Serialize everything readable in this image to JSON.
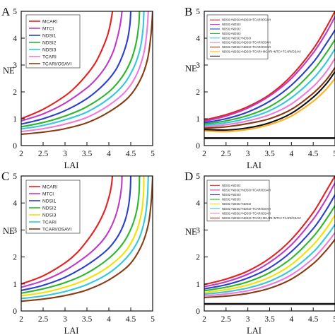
{
  "figure": {
    "panels": [
      {
        "letter": "A"
      },
      {
        "letter": "B"
      },
      {
        "letter": "C"
      },
      {
        "letter": "D"
      }
    ]
  },
  "chart_data": [
    {
      "type": "line",
      "panel": "A",
      "xlabel": "LAI",
      "ylabel": "NE",
      "xlim": [
        2,
        5
      ],
      "ylim": [
        0,
        5
      ],
      "xticks": [
        "2",
        "2.5",
        "3",
        "3.5",
        "4",
        "4.5",
        "5"
      ],
      "yticks": [
        "0",
        "1",
        "2",
        "3",
        "4",
        "5"
      ],
      "grid": false,
      "legend_position": "top-left",
      "series": [
        {
          "name": "MCARI",
          "color": "#e62020",
          "x": [
            2.0,
            2.5,
            3.0,
            3.25,
            3.5,
            3.7,
            3.85,
            3.97,
            4.03,
            4.07,
            4.08
          ],
          "y": [
            1.0,
            1.35,
            1.85,
            2.2,
            2.65,
            3.1,
            3.6,
            4.1,
            4.5,
            4.85,
            5.0
          ]
        },
        {
          "name": "MTCI",
          "color": "#c03ac8",
          "x": [
            2.0,
            2.5,
            3.0,
            3.5,
            3.75,
            3.95,
            4.1,
            4.2,
            4.27,
            4.3
          ],
          "y": [
            0.92,
            1.18,
            1.58,
            2.15,
            2.55,
            3.0,
            3.5,
            4.05,
            4.6,
            5.0
          ]
        },
        {
          "name": "NDSI1",
          "color": "#2a3fd0",
          "x": [
            2.0,
            2.5,
            3.0,
            3.5,
            3.9,
            4.15,
            4.3,
            4.42,
            4.48,
            4.5
          ],
          "y": [
            0.8,
            1.0,
            1.3,
            1.75,
            2.3,
            2.8,
            3.3,
            3.9,
            4.5,
            5.0
          ]
        },
        {
          "name": "NDSI2",
          "color": "#2ab82a",
          "x": [
            2.0,
            2.5,
            3.0,
            3.5,
            4.0,
            4.3,
            4.5,
            4.62,
            4.68,
            4.7
          ],
          "y": [
            0.7,
            0.86,
            1.1,
            1.45,
            2.0,
            2.55,
            3.15,
            3.8,
            4.45,
            5.0
          ]
        },
        {
          "name": "NDSI3",
          "color": "#33c8dc",
          "x": [
            2.0,
            2.5,
            3.0,
            3.5,
            4.0,
            4.35,
            4.58,
            4.72,
            4.78,
            4.8
          ],
          "y": [
            0.62,
            0.75,
            0.96,
            1.25,
            1.75,
            2.3,
            2.95,
            3.65,
            4.35,
            5.0
          ]
        },
        {
          "name": "TCARI",
          "color": "#f07ad8",
          "x": [
            2.0,
            2.5,
            3.0,
            3.5,
            4.0,
            4.4,
            4.65,
            4.8,
            4.87,
            4.9
          ],
          "y": [
            0.52,
            0.63,
            0.8,
            1.05,
            1.5,
            2.05,
            2.7,
            3.45,
            4.25,
            5.0
          ]
        },
        {
          "name": "TCARI/OSAVI",
          "color": "#8a3a10",
          "x": [
            2.0,
            2.5,
            3.0,
            3.5,
            4.0,
            4.45,
            4.72,
            4.88,
            4.96,
            5.0
          ],
          "y": [
            0.42,
            0.5,
            0.63,
            0.85,
            1.25,
            1.8,
            2.45,
            3.2,
            4.1,
            5.0
          ]
        }
      ]
    },
    {
      "type": "line",
      "panel": "B",
      "xlabel": "LAI",
      "ylabel": "NE",
      "xlim": [
        2,
        5
      ],
      "ylim": [
        0,
        5
      ],
      "xticks": [
        "2",
        "2.5",
        "3",
        "3.5",
        "4",
        "4.5",
        "5"
      ],
      "yticks": [
        "0",
        "1",
        "2",
        "3",
        "4",
        "5"
      ],
      "grid": false,
      "legend_position": "top-left",
      "series": [
        {
          "name": "NDSI1+NDSI2+NDSI3+TCARI/OSAVI",
          "color": "#e62020",
          "x": [
            2.0,
            2.5,
            3.0,
            3.5,
            4.0,
            4.5,
            4.8,
            5.0
          ],
          "y": [
            0.95,
            1.15,
            1.45,
            1.9,
            2.6,
            3.6,
            4.4,
            5.0
          ]
        },
        {
          "name": "NDSI1+NDSI3",
          "color": "#c03ac8",
          "x": [
            2.0,
            2.5,
            3.0,
            3.5,
            4.0,
            4.5,
            4.8,
            5.0
          ],
          "y": [
            0.9,
            1.1,
            1.4,
            1.85,
            2.5,
            3.45,
            4.2,
            4.8
          ]
        },
        {
          "name": "NDSI1+NDSI2",
          "color": "#2a3fd0",
          "x": [
            2.0,
            2.5,
            3.0,
            3.5,
            4.0,
            4.5,
            4.8,
            5.0
          ],
          "y": [
            0.85,
            1.0,
            1.25,
            1.65,
            2.25,
            3.1,
            3.8,
            4.3
          ]
        },
        {
          "name": "NDSI2+NDSI3",
          "color": "#2ab82a",
          "x": [
            2.0,
            2.5,
            3.0,
            3.5,
            4.0,
            4.5,
            4.8,
            5.0
          ],
          "y": [
            0.8,
            0.92,
            1.12,
            1.45,
            2.0,
            2.8,
            3.45,
            3.95
          ]
        },
        {
          "name": "NDSI1+NDSI2+NDSI3",
          "color": "#33c8dc",
          "x": [
            2.0,
            2.5,
            3.0,
            3.5,
            4.0,
            4.5,
            4.8,
            5.0
          ],
          "y": [
            0.75,
            0.85,
            1.02,
            1.3,
            1.78,
            2.5,
            3.1,
            3.6
          ]
        },
        {
          "name": "NDSI1+NDSI2+NDSI3+TCARI/OSAVI",
          "color": "#f07ad8",
          "x": [
            2.0,
            2.5,
            3.0,
            3.5,
            4.0,
            4.5,
            4.8,
            5.0
          ],
          "y": [
            0.7,
            0.78,
            0.92,
            1.15,
            1.55,
            2.2,
            2.75,
            3.25
          ]
        },
        {
          "name": "NDSI1+NDSI2+NDSI3+TCARI/OSAVI",
          "color": "#8a3a10",
          "x": [
            2.0,
            2.5,
            3.0,
            3.5,
            4.0,
            4.5,
            4.8,
            5.0
          ],
          "y": [
            0.65,
            0.7,
            0.82,
            1.0,
            1.35,
            1.95,
            2.45,
            2.9
          ]
        },
        {
          "name": "NDSI1+NDSI2+NDSI3+TCARI+MCARI+MTCI+TCARI/OSAVI",
          "color": "#ffb020",
          "x": [
            2.0,
            2.5,
            3.0,
            3.5,
            4.0,
            4.5,
            4.8,
            5.0
          ],
          "y": [
            0.55,
            0.52,
            0.6,
            0.78,
            1.1,
            1.65,
            2.1,
            2.5
          ]
        },
        {
          "name": "",
          "color": "#111111",
          "x": [
            2.0,
            2.5,
            3.0,
            3.5,
            4.0,
            4.5,
            4.8,
            5.0
          ],
          "y": [
            0.6,
            0.58,
            0.66,
            0.85,
            1.2,
            1.8,
            2.3,
            2.75
          ]
        },
        {
          "name": "",
          "color": "#111111",
          "x": [
            2.0,
            5.0
          ],
          "y": [
            0.28,
            0.28
          ]
        }
      ]
    },
    {
      "type": "line",
      "panel": "C",
      "xlabel": "LAI",
      "ylabel": "NE",
      "xlim": [
        2,
        5
      ],
      "ylim": [
        0,
        5
      ],
      "xticks": [
        "2",
        "2.5",
        "3",
        "3.5",
        "4",
        "4.5",
        "5"
      ],
      "yticks": [
        "0",
        "1",
        "2",
        "3",
        "4",
        "5"
      ],
      "grid": false,
      "legend_position": "top-left",
      "series": [
        {
          "name": "MCARI",
          "color": "#e62020",
          "x": [
            2.0,
            2.5,
            3.0,
            3.3,
            3.55,
            3.75,
            3.9,
            4.0,
            4.06,
            4.08
          ],
          "y": [
            1.0,
            1.3,
            1.78,
            2.2,
            2.7,
            3.2,
            3.7,
            4.2,
            4.65,
            5.0
          ]
        },
        {
          "name": "MTCI",
          "color": "#c03ac8",
          "x": [
            2.0,
            2.5,
            3.0,
            3.5,
            3.8,
            4.0,
            4.15,
            4.24,
            4.29,
            4.3
          ],
          "y": [
            0.88,
            1.12,
            1.5,
            2.05,
            2.5,
            2.95,
            3.5,
            4.05,
            4.6,
            5.0
          ]
        },
        {
          "name": "NDSI1",
          "color": "#2a3fd0",
          "x": [
            2.0,
            2.5,
            3.0,
            3.5,
            3.95,
            4.2,
            4.36,
            4.45,
            4.49,
            4.5
          ],
          "y": [
            0.76,
            0.95,
            1.25,
            1.7,
            2.25,
            2.75,
            3.3,
            3.9,
            4.5,
            5.0
          ]
        },
        {
          "name": "NDSI2",
          "color": "#2ab82a",
          "x": [
            2.0,
            2.5,
            3.0,
            3.5,
            4.0,
            4.32,
            4.52,
            4.64,
            4.69,
            4.7
          ],
          "y": [
            0.66,
            0.82,
            1.05,
            1.4,
            1.95,
            2.5,
            3.1,
            3.75,
            4.4,
            5.0
          ]
        },
        {
          "name": "NDSI3",
          "color": "#f5e000",
          "x": [
            2.0,
            2.5,
            3.0,
            3.5,
            4.0,
            4.4,
            4.62,
            4.74,
            4.79,
            4.8
          ],
          "y": [
            0.56,
            0.68,
            0.88,
            1.18,
            1.65,
            2.25,
            2.9,
            3.6,
            4.3,
            5.0
          ]
        },
        {
          "name": "TCARI",
          "color": "#33c8dc",
          "x": [
            2.0,
            2.5,
            3.0,
            3.5,
            4.0,
            4.42,
            4.68,
            4.82,
            4.88,
            4.9
          ],
          "y": [
            0.46,
            0.56,
            0.72,
            0.98,
            1.4,
            2.0,
            2.65,
            3.4,
            4.2,
            5.0
          ]
        },
        {
          "name": "TCARI/OSAVI",
          "color": "#8a3a10",
          "x": [
            2.0,
            2.5,
            3.0,
            3.5,
            4.0,
            4.46,
            4.74,
            4.9,
            4.97,
            5.0
          ],
          "y": [
            0.36,
            0.44,
            0.57,
            0.78,
            1.15,
            1.7,
            2.4,
            3.2,
            4.1,
            5.0
          ]
        }
      ]
    },
    {
      "type": "line",
      "panel": "D",
      "xlabel": "LAI",
      "ylabel": "NE",
      "xlim": [
        2,
        5
      ],
      "ylim": [
        0,
        5
      ],
      "xticks": [
        "2",
        "2.5",
        "3",
        "3.5",
        "4",
        "4.5",
        "5"
      ],
      "yticks": [
        "0",
        "1",
        "2",
        "3",
        "4",
        "5"
      ],
      "grid": false,
      "legend_position": "top-left",
      "series": [
        {
          "name": "NDSI1+NDSI2",
          "color": "#e62020",
          "x": [
            2.0,
            2.5,
            3.0,
            3.5,
            4.0,
            4.5,
            4.8,
            5.0
          ],
          "y": [
            0.98,
            1.18,
            1.48,
            1.95,
            2.65,
            3.65,
            4.45,
            5.0
          ]
        },
        {
          "name": "NDSI1+NDSI2+NDSI3+TCARI/OSAVI",
          "color": "#c03ac8",
          "x": [
            2.0,
            2.5,
            3.0,
            3.5,
            4.0,
            4.5,
            4.8,
            5.0
          ],
          "y": [
            0.9,
            1.08,
            1.36,
            1.8,
            2.45,
            3.4,
            4.15,
            4.75
          ]
        },
        {
          "name": "NDSI2+NDSI3",
          "color": "#2a3fd0",
          "x": [
            2.0,
            2.5,
            3.0,
            3.5,
            4.0,
            4.5,
            4.8,
            5.0
          ],
          "y": [
            0.82,
            0.97,
            1.22,
            1.6,
            2.2,
            3.05,
            3.75,
            4.3
          ]
        },
        {
          "name": "NDSI1+NDSI3",
          "color": "#2ab82a",
          "x": [
            2.0,
            2.5,
            3.0,
            3.5,
            4.0,
            4.5,
            4.8,
            5.0
          ],
          "y": [
            0.75,
            0.88,
            1.08,
            1.42,
            1.95,
            2.75,
            3.4,
            3.9
          ]
        },
        {
          "name": "NDSI1+NDSI2+NDSI3",
          "color": "#f5e000",
          "x": [
            2.0,
            2.5,
            3.0,
            3.5,
            4.0,
            4.5,
            4.8,
            5.0
          ],
          "y": [
            0.68,
            0.79,
            0.96,
            1.25,
            1.72,
            2.45,
            3.05,
            3.55
          ]
        },
        {
          "name": "NDSI1+NDSI2+NDSI3+TCARI/OSAVI",
          "color": "#33c8dc",
          "x": [
            2.0,
            2.5,
            3.0,
            3.5,
            4.0,
            4.5,
            4.8,
            5.0
          ],
          "y": [
            0.62,
            0.71,
            0.85,
            1.1,
            1.52,
            2.18,
            2.75,
            3.2
          ]
        },
        {
          "name": "NDSI1+NDSI2+NDSI3+TCARI/OSAVI",
          "color": "#f07ad8",
          "x": [
            2.0,
            2.5,
            3.0,
            3.5,
            4.0,
            4.5,
            4.8,
            5.0
          ],
          "y": [
            0.56,
            0.63,
            0.75,
            0.97,
            1.34,
            1.95,
            2.48,
            2.9
          ]
        },
        {
          "name": "NDSI1+NDSI2+NDSI3+TCARI+MCARI+MTCI+TCARI/OSAVI",
          "color": "#8a3a10",
          "x": [
            2.0,
            2.5,
            3.0,
            3.5,
            4.0,
            4.5,
            4.8,
            5.0
          ],
          "y": [
            0.5,
            0.55,
            0.65,
            0.84,
            1.18,
            1.75,
            2.25,
            2.65
          ]
        },
        {
          "name": "",
          "color": "#111111",
          "x": [
            2.0,
            5.0
          ],
          "y": [
            0.26,
            0.26
          ]
        }
      ]
    }
  ]
}
